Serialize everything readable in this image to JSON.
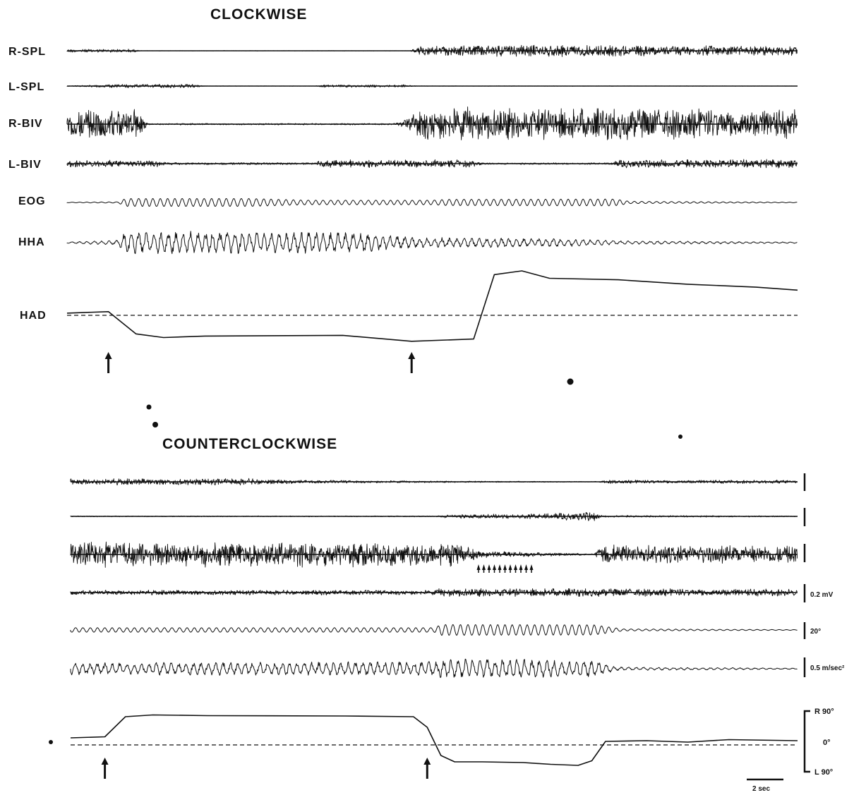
{
  "chart_data": [
    {
      "type": "line",
      "title": "CLOCKWISE",
      "series": [
        {
          "name": "R-SPL",
          "kind": "emg",
          "activity": [
            [
              0,
              0.25
            ],
            [
              0.09,
              0.25
            ],
            [
              0.1,
              0.03
            ],
            [
              0.47,
              0.03
            ],
            [
              0.48,
              0.65
            ],
            [
              0.6,
              0.9
            ],
            [
              1,
              0.7
            ]
          ]
        },
        {
          "name": "L-SPL",
          "kind": "emg",
          "activity": [
            [
              0,
              0.05
            ],
            [
              0.06,
              0.4
            ],
            [
              0.17,
              0.45
            ],
            [
              0.19,
              0.05
            ],
            [
              0.34,
              0.05
            ],
            [
              0.35,
              0.3
            ],
            [
              0.46,
              0.3
            ],
            [
              0.48,
              0.05
            ],
            [
              1,
              0.05
            ]
          ]
        },
        {
          "name": "R-BIV",
          "kind": "emg",
          "activity": [
            [
              0,
              0.9
            ],
            [
              0.1,
              0.9
            ],
            [
              0.11,
              0.05
            ],
            [
              0.45,
              0.05
            ],
            [
              0.47,
              0.4
            ],
            [
              0.48,
              1
            ],
            [
              1,
              0.9
            ]
          ]
        },
        {
          "name": "L-BIV",
          "kind": "emg",
          "activity": [
            [
              0,
              0.6
            ],
            [
              0.12,
              0.55
            ],
            [
              0.14,
              0.2
            ],
            [
              0.34,
              0.2
            ],
            [
              0.35,
              0.7
            ],
            [
              0.55,
              0.6
            ],
            [
              0.57,
              0.15
            ],
            [
              0.74,
              0.15
            ],
            [
              0.76,
              0.7
            ],
            [
              1,
              0.7
            ]
          ]
        },
        {
          "name": "EOG",
          "kind": "osc",
          "activity": [
            [
              0,
              0.05
            ],
            [
              0.07,
              0.1
            ],
            [
              0.08,
              0.7
            ],
            [
              0.25,
              0.7
            ],
            [
              0.33,
              0.4
            ],
            [
              0.5,
              0.4
            ],
            [
              0.52,
              0.55
            ],
            [
              0.75,
              0.6
            ],
            [
              0.77,
              0.2
            ],
            [
              1,
              0.05
            ]
          ]
        },
        {
          "name": "HHA",
          "kind": "osc",
          "activity": [
            [
              0,
              0.05
            ],
            [
              0.07,
              0.2
            ],
            [
              0.08,
              0.9
            ],
            [
              0.4,
              0.8
            ],
            [
              0.48,
              0.4
            ],
            [
              0.7,
              0.3
            ],
            [
              0.75,
              0.15
            ],
            [
              1,
              0.05
            ]
          ]
        },
        {
          "name": "HAD",
          "kind": "position",
          "x_sec": [
            0,
            3,
            5,
            7,
            10,
            20,
            25,
            29.5,
            31,
            33,
            35,
            40,
            45,
            50,
            53
          ],
          "y_deg": [
            3,
            5,
            -25,
            -30,
            -28,
            -27,
            -35,
            -32,
            55,
            60,
            50,
            48,
            42,
            38,
            34
          ]
        }
      ],
      "markers": {
        "stimulus_arrows_sec": [
          3,
          25
        ],
        "dashed_reference_deg": 0
      }
    },
    {
      "type": "line",
      "title": "COUNTERCLOCKWISE",
      "series": [
        {
          "kind": "emg",
          "activity": [
            [
              0,
              0.5
            ],
            [
              0.25,
              0.55
            ],
            [
              0.3,
              0.3
            ],
            [
              0.5,
              0.15
            ],
            [
              0.72,
              0.05
            ],
            [
              0.74,
              0.3
            ],
            [
              1,
              0.3
            ]
          ]
        },
        {
          "kind": "emg",
          "activity": [
            [
              0,
              0.1
            ],
            [
              0.5,
              0.1
            ],
            [
              0.52,
              0.35
            ],
            [
              0.65,
              0.5
            ],
            [
              0.72,
              1
            ],
            [
              0.73,
              0.2
            ],
            [
              1,
              0.1
            ]
          ]
        },
        {
          "kind": "emg",
          "activity": [
            [
              0,
              1
            ],
            [
              0.54,
              0.9
            ],
            [
              0.56,
              0.3
            ],
            [
              0.72,
              0.05
            ],
            [
              0.73,
              0.75
            ],
            [
              1,
              0.7
            ]
          ]
        },
        {
          "kind": "emg",
          "activity": [
            [
              0,
              0.4
            ],
            [
              0.5,
              0.4
            ],
            [
              0.51,
              0.7
            ],
            [
              1,
              0.6
            ]
          ]
        },
        {
          "kind": "osc",
          "activity": [
            [
              0,
              0.35
            ],
            [
              0.5,
              0.35
            ],
            [
              0.51,
              0.85
            ],
            [
              0.72,
              0.8
            ],
            [
              0.76,
              0.15
            ],
            [
              1,
              0.05
            ]
          ]
        },
        {
          "kind": "osc",
          "activity": [
            [
              0,
              0.5
            ],
            [
              0.5,
              0.6
            ],
            [
              0.51,
              0.9
            ],
            [
              0.72,
              0.7
            ],
            [
              0.75,
              0.15
            ],
            [
              1,
              0.05
            ]
          ]
        },
        {
          "kind": "position",
          "x_sec": [
            0,
            2.5,
            4,
            6,
            10,
            20,
            25,
            26,
            27,
            28,
            30,
            33,
            35,
            37,
            38,
            39,
            42,
            45,
            48,
            53
          ],
          "y_deg": [
            20,
            23,
            80,
            85,
            83,
            82,
            80,
            50,
            -30,
            -48,
            -48,
            -50,
            -55,
            -58,
            -45,
            10,
            12,
            8,
            15,
            12
          ]
        }
      ],
      "markers": {
        "stimulus_arrows_sec": [
          2.5,
          26
        ],
        "dashed_reference_deg": 0,
        "small_arrow_cluster": true
      }
    }
  ],
  "scale_bars": {
    "emg": "0.2 mV",
    "eog": "20°",
    "hha": "0.5 m/sec²",
    "had_top": "R 90°",
    "had_mid": "0°",
    "had_bottom": "L 90°",
    "time": "2 sec"
  }
}
